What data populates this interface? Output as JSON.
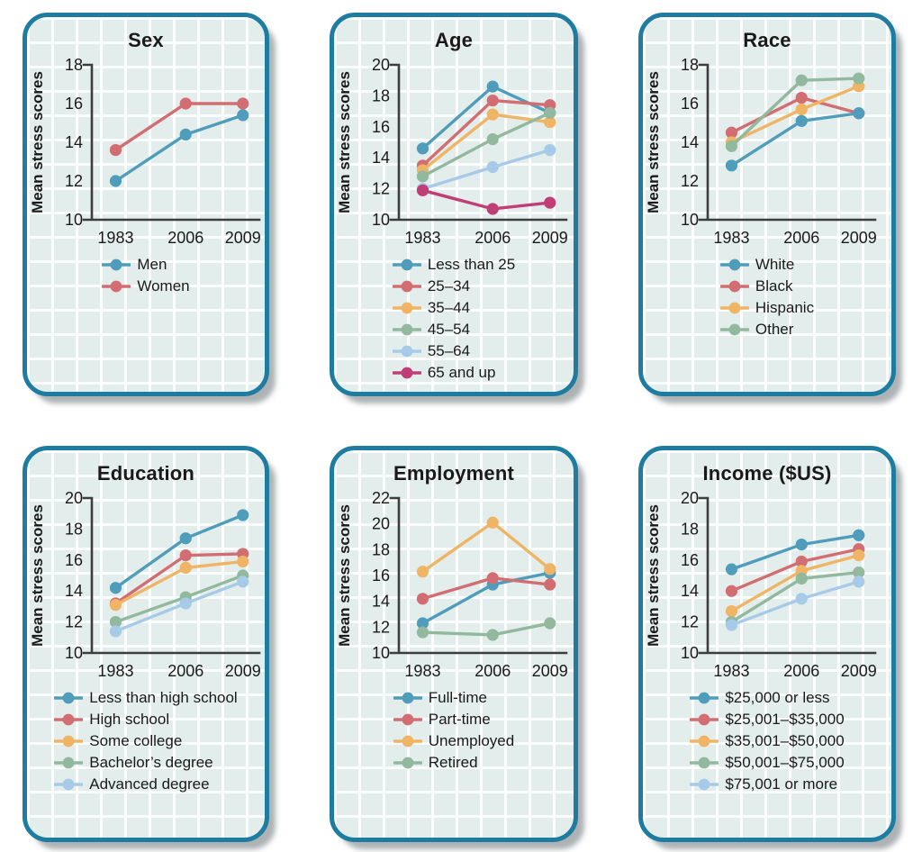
{
  "figure": {
    "ylabel_shared": "Mean stress scores",
    "x_categories": [
      "1983",
      "2006",
      "2009"
    ],
    "colors": {
      "page_background": "#ffffff",
      "card_background": "#e3edec",
      "card_border": "#1e7ca0",
      "grid_line": "#ffffff",
      "axis": "#3d3d3d",
      "text": "#1a1a1a"
    }
  },
  "chart_data": [
    {
      "type": "line",
      "title": "Sex",
      "ylabel": "Mean stress scores",
      "categories": [
        "1983",
        "2006",
        "2009"
      ],
      "ylim": [
        10,
        18
      ],
      "yticks": [
        10,
        12,
        14,
        16,
        18
      ],
      "legend_position": "bottom",
      "background_grid": true,
      "series": [
        {
          "name": "Men",
          "color": "#4f9dba",
          "values": [
            12.0,
            14.4,
            15.4
          ]
        },
        {
          "name": "Women",
          "color": "#d26e72",
          "values": [
            13.6,
            16.0,
            16.0
          ]
        }
      ]
    },
    {
      "type": "line",
      "title": "Age",
      "ylabel": "Mean stress scores",
      "categories": [
        "1983",
        "2006",
        "2009"
      ],
      "ylim": [
        10,
        20
      ],
      "yticks": [
        10,
        12,
        14,
        16,
        18,
        20
      ],
      "legend_position": "bottom",
      "background_grid": true,
      "series": [
        {
          "name": "Less than 25",
          "color": "#4f9dba",
          "values": [
            14.6,
            18.6,
            16.9
          ]
        },
        {
          "name": "25–34",
          "color": "#d26e72",
          "values": [
            13.5,
            17.7,
            17.4
          ]
        },
        {
          "name": "35–44",
          "color": "#f0b465",
          "values": [
            13.2,
            16.8,
            16.3
          ]
        },
        {
          "name": "45–54",
          "color": "#92b99d",
          "values": [
            12.8,
            15.2,
            16.9
          ]
        },
        {
          "name": "55–64",
          "color": "#a7cae8",
          "values": [
            12.0,
            13.4,
            14.5
          ]
        },
        {
          "name": "65 and up",
          "color": "#c03e76",
          "values": [
            11.9,
            10.7,
            11.1
          ]
        }
      ]
    },
    {
      "type": "line",
      "title": "Race",
      "ylabel": "Mean stress scores",
      "categories": [
        "1983",
        "2006",
        "2009"
      ],
      "ylim": [
        10,
        18
      ],
      "yticks": [
        10,
        12,
        14,
        16,
        18
      ],
      "legend_position": "bottom",
      "background_grid": true,
      "draw_order": [
        1,
        2,
        3,
        0
      ],
      "series": [
        {
          "name": "White",
          "color": "#4f9dba",
          "values": [
            12.8,
            15.1,
            15.5
          ]
        },
        {
          "name": "Black",
          "color": "#d26e72",
          "values": [
            14.5,
            16.3,
            15.5
          ]
        },
        {
          "name": "Hispanic",
          "color": "#f0b465",
          "values": [
            14.0,
            15.7,
            16.9
          ]
        },
        {
          "name": "Other",
          "color": "#92b99d",
          "values": [
            13.8,
            17.2,
            17.3
          ]
        }
      ]
    },
    {
      "type": "line",
      "title": "Education",
      "ylabel": "Mean stress scores",
      "categories": [
        "1983",
        "2006",
        "2009"
      ],
      "ylim": [
        10,
        20
      ],
      "yticks": [
        10,
        12,
        14,
        16,
        18,
        20
      ],
      "legend_position": "bottom",
      "background_grid": true,
      "series": [
        {
          "name": "Less than high school",
          "color": "#4f9dba",
          "values": [
            14.2,
            17.4,
            18.9
          ]
        },
        {
          "name": "High school",
          "color": "#d26e72",
          "values": [
            13.2,
            16.3,
            16.4
          ]
        },
        {
          "name": "Some college",
          "color": "#f0b465",
          "values": [
            13.1,
            15.5,
            15.9
          ]
        },
        {
          "name": "Bachelor’s degree",
          "color": "#92b99d",
          "values": [
            12.0,
            13.6,
            15.0
          ]
        },
        {
          "name": "Advanced degree",
          "color": "#a7cae8",
          "values": [
            11.4,
            13.2,
            14.6
          ]
        }
      ]
    },
    {
      "type": "line",
      "title": "Employment",
      "ylabel": "Mean stress scores",
      "categories": [
        "1983",
        "2006",
        "2009"
      ],
      "ylim": [
        10,
        22
      ],
      "yticks": [
        10,
        12,
        14,
        16,
        18,
        20,
        22
      ],
      "legend_position": "bottom",
      "background_grid": true,
      "series": [
        {
          "name": "Full-time",
          "color": "#4f9dba",
          "values": [
            12.3,
            15.3,
            16.2
          ]
        },
        {
          "name": "Part-time",
          "color": "#d26e72",
          "values": [
            14.2,
            15.8,
            15.3
          ]
        },
        {
          "name": "Unemployed",
          "color": "#f0b465",
          "values": [
            16.3,
            20.1,
            16.5
          ]
        },
        {
          "name": "Retired",
          "color": "#92b99d",
          "values": [
            11.6,
            11.4,
            12.3
          ]
        }
      ]
    },
    {
      "type": "line",
      "title": "Income ($US)",
      "ylabel": "Mean stress scores",
      "categories": [
        "1983",
        "2006",
        "2009"
      ],
      "ylim": [
        10,
        20
      ],
      "yticks": [
        10,
        12,
        14,
        16,
        18,
        20
      ],
      "legend_position": "bottom",
      "background_grid": true,
      "series": [
        {
          "name": "$25,000 or less",
          "color": "#4f9dba",
          "values": [
            15.4,
            17.0,
            17.6
          ]
        },
        {
          "name": "$25,001–$35,000",
          "color": "#d26e72",
          "values": [
            14.0,
            15.9,
            16.7
          ]
        },
        {
          "name": "$35,001–$50,000",
          "color": "#f0b465",
          "values": [
            12.7,
            15.3,
            16.3
          ]
        },
        {
          "name": "$50,001–$75,000",
          "color": "#92b99d",
          "values": [
            12.0,
            14.8,
            15.2
          ]
        },
        {
          "name": "$75,001 or more",
          "color": "#a7cae8",
          "values": [
            11.8,
            13.5,
            14.6
          ]
        }
      ]
    }
  ]
}
